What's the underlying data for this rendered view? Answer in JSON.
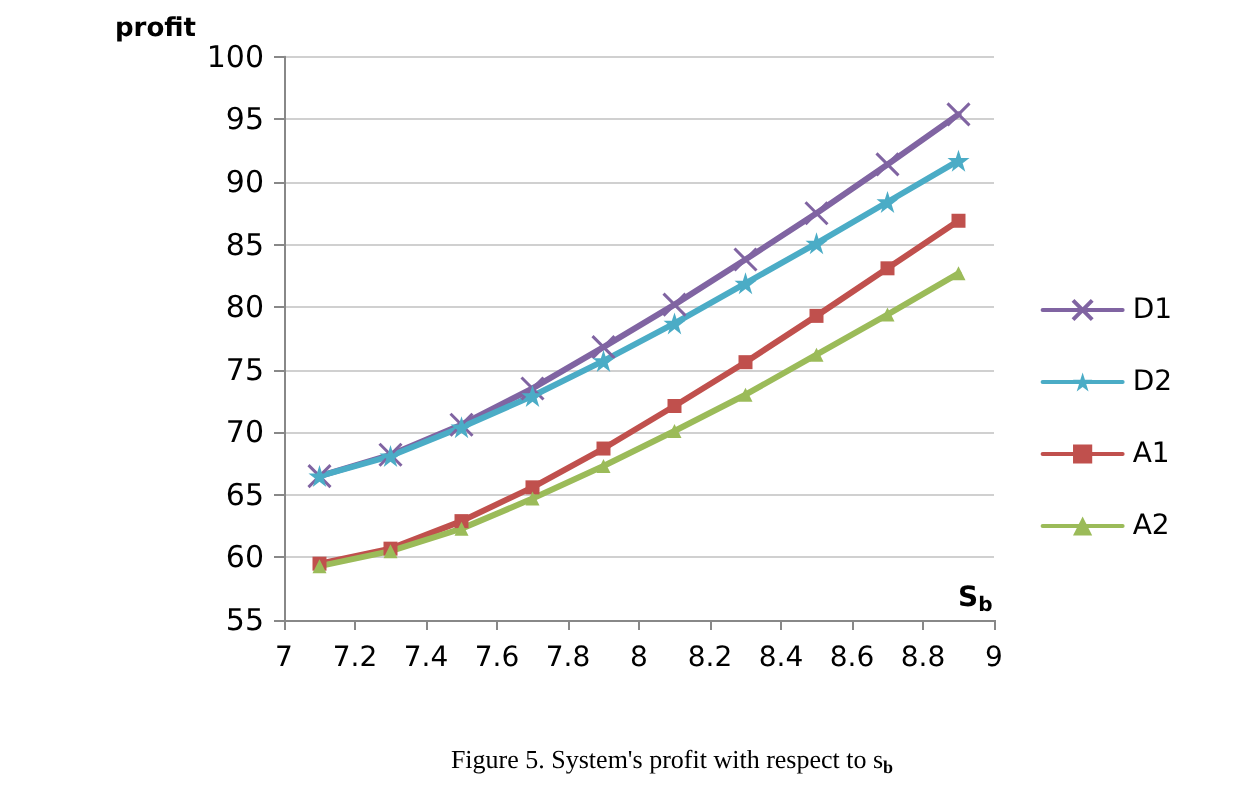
{
  "chart_data": {
    "type": "line",
    "title": "Figure 5. System's profit with respect to s$_{b}$",
    "xlabel": "S$_{b}$",
    "ylabel": "profit",
    "x": [
      7.1,
      7.3,
      7.5,
      7.7,
      7.9,
      8.1,
      8.3,
      8.5,
      8.7,
      8.9
    ],
    "series": [
      {
        "name": "D1",
        "color": "#8064a2",
        "marker": "cross",
        "values": [
          66.5,
          68.2,
          70.6,
          73.5,
          76.8,
          80.2,
          83.8,
          87.5,
          91.4,
          95.4
        ]
      },
      {
        "name": "D2",
        "color": "#4bacc6",
        "marker": "star",
        "values": [
          66.5,
          68.1,
          70.4,
          72.9,
          75.7,
          78.7,
          81.9,
          85.1,
          88.4,
          91.7
        ]
      },
      {
        "name": "A1",
        "color": "#c0504d",
        "marker": "square",
        "values": [
          59.5,
          60.7,
          62.9,
          65.6,
          68.7,
          72.1,
          75.6,
          79.3,
          83.1,
          86.9
        ]
      },
      {
        "name": "A2",
        "color": "#9bbb59",
        "marker": "triangle",
        "values": [
          59.3,
          60.5,
          62.3,
          64.7,
          67.3,
          70.1,
          73.0,
          76.2,
          79.4,
          82.7
        ]
      }
    ],
    "xlim": [
      7,
      9
    ],
    "xticks": [
      7,
      7.2,
      7.4,
      7.6,
      7.8,
      8,
      8.2,
      8.4,
      8.6,
      8.8,
      9
    ],
    "ylim": [
      55,
      100
    ],
    "yticks": [
      55,
      60,
      65,
      70,
      75,
      80,
      85,
      90,
      95,
      100
    ],
    "grid": "y",
    "legend": "right",
    "line_style": "solid"
  }
}
